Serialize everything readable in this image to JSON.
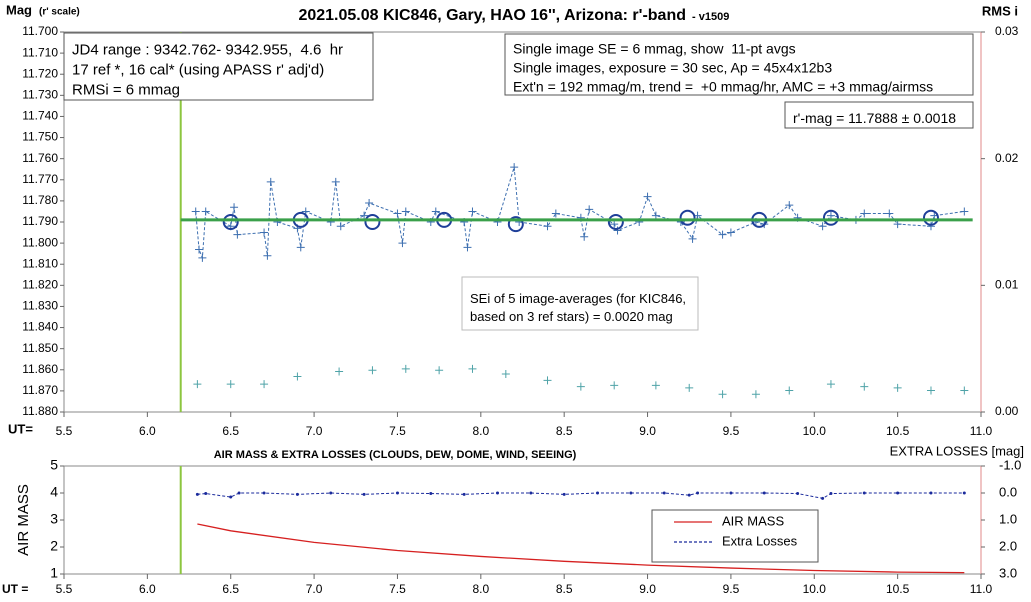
{
  "chart_data": [
    {
      "type": "line",
      "title": "2021.05.08 KIC846, Gary, HAO 16'', Arizona: r'-band",
      "subtitle": "- v1509",
      "ylabel": "Mag",
      "ylabel_note": "(r' scale)",
      "y2label": "RMS i",
      "xlabel": "UT=",
      "xlim": [
        5.5,
        11.0
      ],
      "xticks": [
        5.5,
        {
          "value": 6,
          "label": "6.0"
        },
        6.5,
        {
          "value": 7,
          "label": "7.0"
        },
        7.5,
        {
          "value": 8,
          "label": "8.0"
        },
        8.5,
        {
          "value": 9,
          "label": "9.0"
        },
        9.5,
        {
          "value": 10,
          "label": "10.0"
        },
        10.5,
        {
          "value": 11,
          "label": "11.0"
        }
      ],
      "ylim": [
        11.88,
        11.7
      ],
      "yticks": [
        {
          "value": 11.7,
          "label": "11.700"
        },
        {
          "value": 11.71,
          "label": "11.710"
        },
        {
          "value": 11.72,
          "label": "11.720"
        },
        {
          "value": 11.73,
          "label": "11.730"
        },
        {
          "value": 11.74,
          "label": "11.740"
        },
        {
          "value": 11.75,
          "label": "11.750"
        },
        {
          "value": 11.76,
          "label": "11.760"
        },
        {
          "value": 11.77,
          "label": "11.770"
        },
        {
          "value": 11.78,
          "label": "11.780"
        },
        {
          "value": 11.79,
          "label": "11.790"
        },
        {
          "value": 11.8,
          "label": "11.800"
        },
        {
          "value": 11.81,
          "label": "11.810"
        },
        {
          "value": 11.82,
          "label": "11.820"
        },
        {
          "value": 11.83,
          "label": "11.830"
        },
        {
          "value": 11.84,
          "label": "11.840"
        },
        {
          "value": 11.85,
          "label": "11.850"
        },
        {
          "value": 11.86,
          "label": "11.860"
        },
        {
          "value": 11.87,
          "label": "11.870"
        },
        {
          "value": 11.88,
          "label": "11.880"
        }
      ],
      "y2lim": [
        0,
        0.03
      ],
      "y2ticks": [
        {
          "value": 0,
          "label": "0.00"
        },
        0.01,
        0.02,
        0.03
      ],
      "vline": 6.2,
      "vline_color": "#8cc63f",
      "annotations": [
        [
          "JD4 range : 9342.762- 9342.955,  4.6  hr",
          "17 ref *, 16 cal* (using APASS r' adj'd)",
          "RMSi = 6 mmag"
        ],
        [
          "Single image SE = 6 mmag, show  11-pt avgs",
          "Single images, exposure = 30 sec, Ap = 45x4x12b3",
          "Ext'n = 192 mmag/m, trend =  +0 mmag/hr, AMC = +3 mmag/airmss"
        ],
        [
          "r'-mag = 11.7888 ± 0.0018"
        ],
        [
          "SEi of 5 image-averages (for KIC846,",
          "based on 3 ref stars) = 0.0020 mag"
        ]
      ],
      "series": [
        {
          "color": "#3d6fb0",
          "style": "dashed",
          "marker": "plus",
          "x": [
            6.29,
            6.31,
            6.33,
            6.35,
            6.5,
            6.52,
            6.54,
            6.7,
            6.72,
            6.74,
            6.78,
            6.9,
            6.92,
            6.95,
            7.1,
            7.13,
            7.16,
            7.3,
            7.33,
            7.5,
            7.53,
            7.55,
            7.7,
            7.73,
            7.9,
            7.92,
            7.95,
            8.1,
            8.2,
            8.23,
            8.4,
            8.45,
            8.6,
            8.62,
            8.65,
            8.8,
            8.82,
            8.95,
            9.0,
            9.05,
            9.2,
            9.27,
            9.3,
            9.45,
            9.5,
            9.65,
            9.7,
            9.85,
            9.9,
            10.05,
            10.1,
            10.25,
            10.3,
            10.45,
            10.5,
            10.7,
            10.72,
            10.9
          ],
          "values": [
            11.785,
            11.803,
            11.807,
            11.785,
            11.792,
            11.783,
            11.796,
            11.795,
            11.806,
            11.771,
            11.79,
            11.793,
            11.802,
            11.785,
            11.79,
            11.771,
            11.792,
            11.787,
            11.781,
            11.786,
            11.8,
            11.785,
            11.79,
            11.785,
            11.79,
            11.802,
            11.785,
            11.79,
            11.764,
            11.79,
            11.792,
            11.786,
            11.788,
            11.797,
            11.784,
            11.791,
            11.794,
            11.79,
            11.778,
            11.787,
            11.79,
            11.798,
            11.787,
            11.796,
            11.795,
            11.79,
            11.791,
            11.782,
            11.788,
            11.792,
            11.787,
            11.789,
            11.786,
            11.786,
            11.791,
            11.792,
            11.787,
            11.785
          ]
        },
        {
          "color": "#1f3f99",
          "style": "none",
          "marker": "circle",
          "x": [
            6.5,
            6.92,
            7.35,
            7.78,
            8.21,
            8.81,
            9.24,
            9.67,
            10.1,
            10.7
          ],
          "values": [
            11.79,
            11.789,
            11.79,
            11.789,
            11.791,
            11.79,
            11.788,
            11.789,
            11.788,
            11.788
          ]
        },
        {
          "color": "#3aa04a",
          "style": "solid",
          "marker": "none",
          "x": [
            6.2,
            10.95
          ],
          "values": [
            11.789,
            11.789
          ]
        },
        {
          "color": "#4fa3a8",
          "style": "none",
          "marker": "plus",
          "axis": "y2",
          "x": [
            6.3,
            6.5,
            6.7,
            6.9,
            7.15,
            7.35,
            7.55,
            7.75,
            7.95,
            8.15,
            8.4,
            8.6,
            8.8,
            9.05,
            9.25,
            9.45,
            9.65,
            9.85,
            10.1,
            10.3,
            10.5,
            10.7,
            10.9
          ],
          "values": [
            0.0022,
            0.0022,
            0.0022,
            0.0028,
            0.0032,
            0.0033,
            0.0034,
            0.0033,
            0.0034,
            0.003,
            0.0025,
            0.002,
            0.0021,
            0.0021,
            0.0019,
            0.0014,
            0.0014,
            0.0017,
            0.0022,
            0.002,
            0.0019,
            0.0017,
            0.0017
          ]
        }
      ]
    },
    {
      "type": "line",
      "title": "AIR MASS & EXTRA LOSSES (CLOUDS, DEW, DOME, WIND, SEEING)",
      "ylabel": "AIR MASS",
      "y2label": "EXTRA LOSSES [mag]",
      "xlabel": "UT =",
      "xlim": [
        5.5,
        11.0
      ],
      "xticks": [
        5.5,
        {
          "value": 6,
          "label": "6.0"
        },
        6.5,
        {
          "value": 7,
          "label": "7.0"
        },
        7.5,
        {
          "value": 8,
          "label": "8.0"
        },
        8.5,
        {
          "value": 9,
          "label": "9.0"
        },
        9.5,
        {
          "value": 10,
          "label": "10.0"
        },
        10.5,
        {
          "value": 11,
          "label": "11.0"
        }
      ],
      "ylim": [
        1,
        5
      ],
      "yticks": [
        1,
        2,
        3,
        4,
        5
      ],
      "y2lim": [
        3,
        -1
      ],
      "y2ticks": [
        {
          "value": -1,
          "label": "-1.0"
        },
        {
          "value": 0,
          "label": "0.0"
        },
        {
          "value": 1,
          "label": "1.0"
        },
        {
          "value": 2,
          "label": "2.0"
        },
        {
          "value": 3,
          "label": "3.0"
        }
      ],
      "vline": 6.2,
      "vline_color": "#8cc63f",
      "legend": "lower right",
      "series": [
        {
          "name": "AIR MASS",
          "color": "#d62020",
          "style": "solid",
          "marker": "none",
          "x": [
            6.3,
            6.5,
            7.0,
            7.5,
            8.0,
            8.5,
            9.0,
            9.5,
            10.0,
            10.5,
            10.9
          ],
          "values": [
            2.85,
            2.6,
            2.17,
            1.87,
            1.65,
            1.47,
            1.33,
            1.22,
            1.13,
            1.07,
            1.05
          ]
        },
        {
          "name": "Extra Losses",
          "color": "#1a2a9c",
          "style": "dashed",
          "marker": "dot",
          "axis": "y2",
          "x": [
            6.3,
            6.35,
            6.5,
            6.55,
            6.7,
            6.9,
            7.1,
            7.3,
            7.5,
            7.7,
            7.9,
            8.1,
            8.3,
            8.5,
            8.7,
            8.9,
            9.1,
            9.25,
            9.3,
            9.5,
            9.7,
            9.9,
            10.05,
            10.1,
            10.3,
            10.5,
            10.7,
            10.9
          ],
          "values": [
            0.05,
            0.02,
            0.15,
            0.0,
            0.0,
            0.05,
            0.0,
            0.05,
            0.0,
            0.02,
            0.05,
            0.0,
            0.0,
            0.05,
            0.0,
            0.0,
            0.0,
            0.08,
            0.0,
            0.0,
            0.0,
            0.02,
            0.2,
            0.02,
            0.0,
            0.0,
            0.0,
            0.0
          ]
        }
      ]
    }
  ]
}
